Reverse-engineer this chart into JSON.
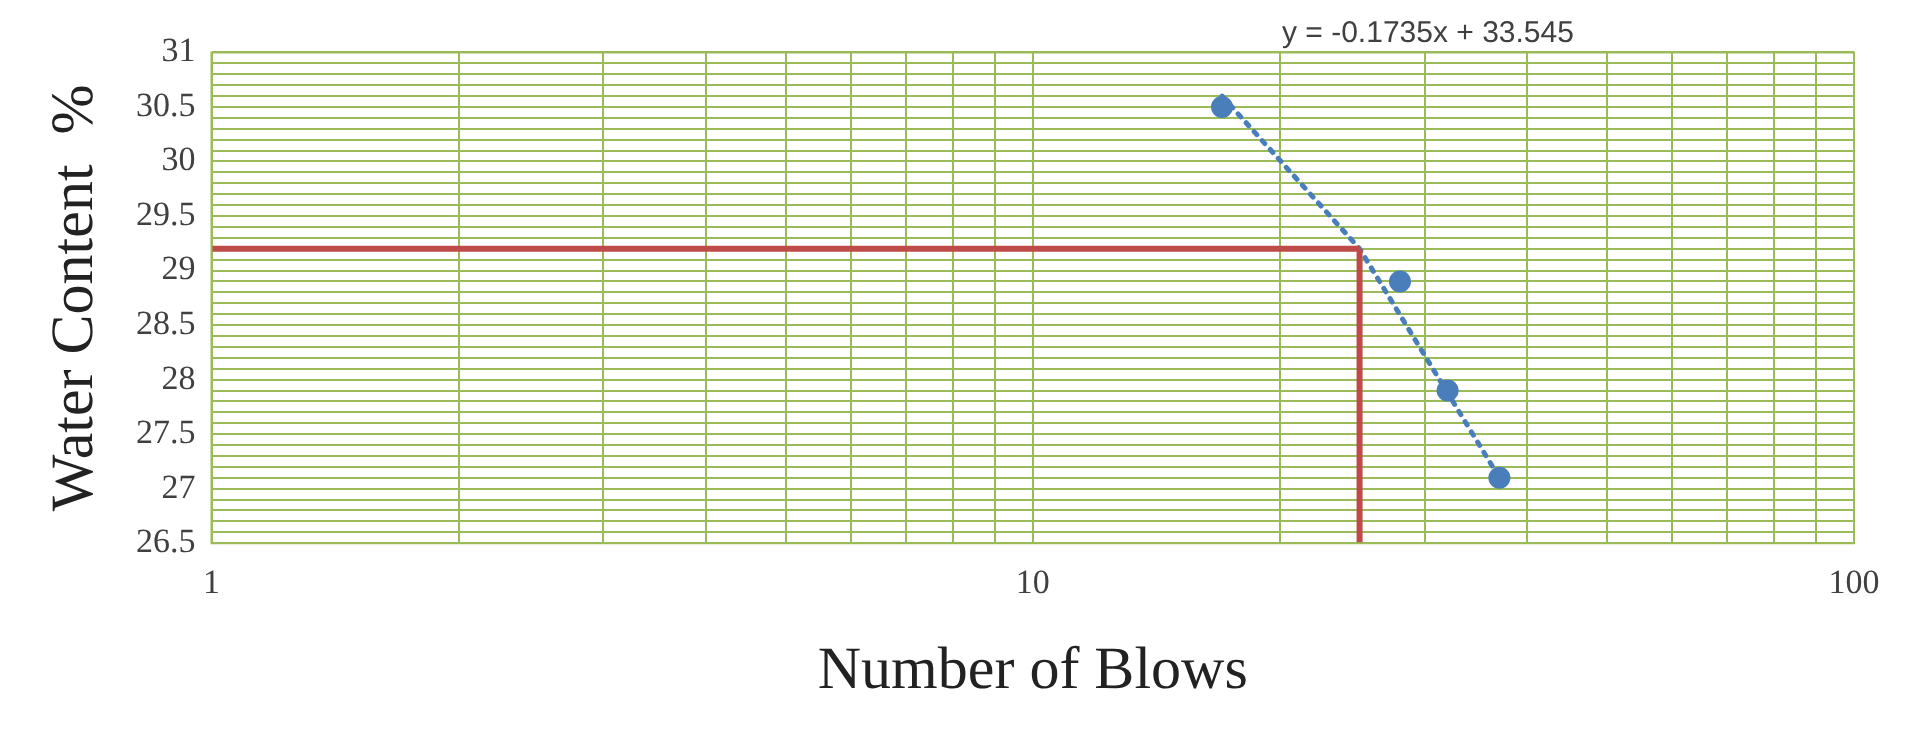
{
  "chart_data": {
    "type": "scatter",
    "xlabel": "Number of Blows",
    "ylabel": "Water Content  %",
    "log": "x",
    "grid": true,
    "marker": "circle",
    "legend": false,
    "xlim": [
      1,
      100
    ],
    "xticks": [
      1,
      {
        "value": 2,
        "label": null
      },
      {
        "value": 3,
        "label": null
      },
      {
        "value": 4,
        "label": null
      },
      {
        "value": 5,
        "label": null
      },
      {
        "value": 6,
        "label": null
      },
      {
        "value": 7,
        "label": null
      },
      {
        "value": 8,
        "label": null
      },
      {
        "value": 9,
        "label": null
      },
      10,
      {
        "value": 20,
        "label": null
      },
      {
        "value": 30,
        "label": null
      },
      {
        "value": 40,
        "label": null
      },
      {
        "value": 50,
        "label": null
      },
      {
        "value": 60,
        "label": null
      },
      {
        "value": 70,
        "label": null
      },
      {
        "value": 80,
        "label": null
      },
      {
        "value": 90,
        "label": null
      },
      100
    ],
    "ylim": [
      26.5,
      31
    ],
    "yticks": [
      26.5,
      {
        "value": 26.6,
        "label": null
      },
      {
        "value": 26.7,
        "label": null
      },
      {
        "value": 26.8,
        "label": null
      },
      {
        "value": 26.9,
        "label": null
      },
      27,
      {
        "value": 27.1,
        "label": null
      },
      {
        "value": 27.2,
        "label": null
      },
      {
        "value": 27.3,
        "label": null
      },
      {
        "value": 27.4,
        "label": null
      },
      27.5,
      {
        "value": 27.6,
        "label": null
      },
      {
        "value": 27.7,
        "label": null
      },
      {
        "value": 27.8,
        "label": null
      },
      {
        "value": 27.9,
        "label": null
      },
      28,
      {
        "value": 28.1,
        "label": null
      },
      {
        "value": 28.2,
        "label": null
      },
      {
        "value": 28.3,
        "label": null
      },
      {
        "value": 28.4,
        "label": null
      },
      28.5,
      {
        "value": 28.6,
        "label": null
      },
      {
        "value": 28.7,
        "label": null
      },
      {
        "value": 28.8,
        "label": null
      },
      {
        "value": 28.9,
        "label": null
      },
      29,
      {
        "value": 29.1,
        "label": null
      },
      {
        "value": 29.2,
        "label": null
      },
      {
        "value": 29.3,
        "label": null
      },
      {
        "value": 29.4,
        "label": null
      },
      29.5,
      {
        "value": 29.6,
        "label": null
      },
      {
        "value": 29.7,
        "label": null
      },
      {
        "value": 29.8,
        "label": null
      },
      {
        "value": 29.9,
        "label": null
      },
      30,
      {
        "value": 30.1,
        "label": null
      },
      {
        "value": 30.2,
        "label": null
      },
      {
        "value": 30.3,
        "label": null
      },
      {
        "value": 30.4,
        "label": null
      },
      30.5,
      {
        "value": 30.6,
        "label": null
      },
      {
        "value": 30.7,
        "label": null
      },
      {
        "value": 30.8,
        "label": null
      },
      {
        "value": 30.9,
        "label": null
      },
      31
    ],
    "series": [
      {
        "color": "#4a7ebb",
        "x": [
          17,
          28,
          32,
          37
        ],
        "values": [
          30.5,
          28.9,
          27.9,
          27.1
        ]
      },
      {
        "type": "line",
        "color": "#4a7ebb",
        "line_style": "dotted",
        "marker": "none",
        "x": [
          17,
          25,
          37
        ],
        "values": [
          30.6,
          29.2,
          27.1
        ]
      }
    ],
    "ref_lines": [
      {
        "axis": "y",
        "value": 29.2,
        "color": "#be4b48"
      },
      {
        "axis": "x",
        "value": 25,
        "color": "#be4b48"
      }
    ],
    "annotations": [
      "y = -0.1735x + 33.545"
    ]
  }
}
